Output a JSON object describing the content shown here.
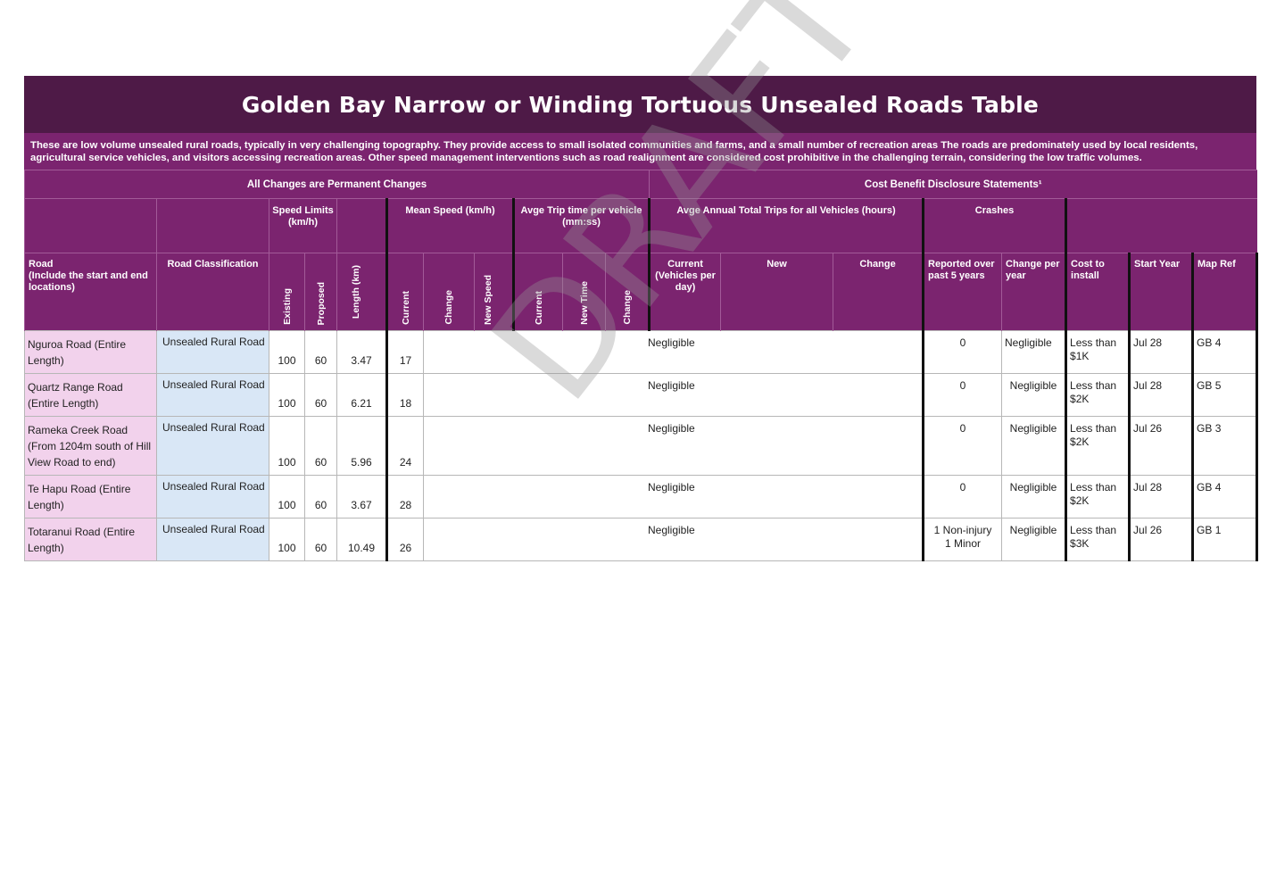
{
  "title": "Golden Bay Narrow or Winding Tortuous Unsealed Roads Table",
  "description": "These are low volume unsealed rural roads, typically in very challenging topography.  They provide access to small isolated communities and farms, and a small number of recreation areas The roads are predominately used by local residents, agricultural service vehicles, and visitors accessing recreation areas. Other speed management interventions such as road realignment are considered cost prohibitive in the challenging terrain, considering the low traffic volumes.",
  "bands": {
    "left": "All Changes are Permanent Changes",
    "right": "Cost Benefit Disclosure Statements¹"
  },
  "groups": {
    "speed_limits": "Speed Limits (km/h)",
    "mean_speed": "Mean Speed (km/h)",
    "trip_time": "Avge Trip time per vehicle (mm:ss)",
    "annual_trips": "Avge Annual Total Trips for all Vehicles (hours)",
    "crashes": "Crashes"
  },
  "columns": {
    "road": "Road\n(Include the start and end locations)",
    "classification": "Road Classification",
    "existing": "Existing",
    "proposed": "Proposed",
    "length": "Length (km)",
    "ms_current": "Current",
    "ms_change": "Change",
    "ms_new": "New Speed",
    "tt_current": "Current",
    "tt_new": "New Time",
    "tt_change": "Change",
    "at_current": "Current (Vehicles per day)",
    "at_new": "New",
    "at_change": "Change",
    "cr_reported": "Reported over past 5 years",
    "cr_change": "Change per year",
    "cost": "Cost to install",
    "start_year": "Start Year",
    "map_ref": "Map Ref"
  },
  "rows": [
    {
      "road": "Nguroa Road (Entire Length)",
      "classification": "Unsealed Rural Road",
      "existing": "100",
      "proposed": "60",
      "length": "3.47",
      "current_speed": "17",
      "impact": "Negligible",
      "crashes": "0",
      "crash_change": "Negligible",
      "cost": "Less than $1K",
      "start_year": "Jul 28",
      "map_ref": "GB 4"
    },
    {
      "road": "Quartz Range Road (Entire Length)",
      "classification": "Unsealed Rural Road",
      "existing": "100",
      "proposed": "60",
      "length": "6.21",
      "current_speed": "18",
      "impact": "Negligible",
      "crashes": "0",
      "crash_change": "Negligible",
      "cost": "Less than $2K",
      "start_year": "Jul 28",
      "map_ref": "GB 5"
    },
    {
      "road": "Rameka Creek Road (From 1204m south of Hill View Road to end)",
      "classification": "Unsealed Rural Road",
      "existing": "100",
      "proposed": "60",
      "length": "5.96",
      "current_speed": "24",
      "impact": "Negligible",
      "crashes": "0",
      "crash_change": "Negligible",
      "cost": "Less than $2K",
      "start_year": "Jul 26",
      "map_ref": "GB 3"
    },
    {
      "road": "Te Hapu Road (Entire Length)",
      "classification": "Unsealed Rural Road",
      "existing": "100",
      "proposed": "60",
      "length": "3.67",
      "current_speed": "28",
      "impact": "Negligible",
      "crashes": "0",
      "crash_change": "Negligible",
      "cost": "Less than $2K",
      "start_year": "Jul 28",
      "map_ref": "GB 4"
    },
    {
      "road": "Totaranui Road (Entire Length)",
      "classification": "Unsealed Rural Road",
      "existing": "100",
      "proposed": "60",
      "length": "10.49",
      "current_speed": "26",
      "impact": "Negligible",
      "crashes": "1 Non-injury\n1 Minor",
      "crash_change": "Negligible",
      "cost": "Less than $3K",
      "start_year": "Jul 26",
      "map_ref": "GB 1"
    }
  ],
  "watermark": "DRAFT"
}
